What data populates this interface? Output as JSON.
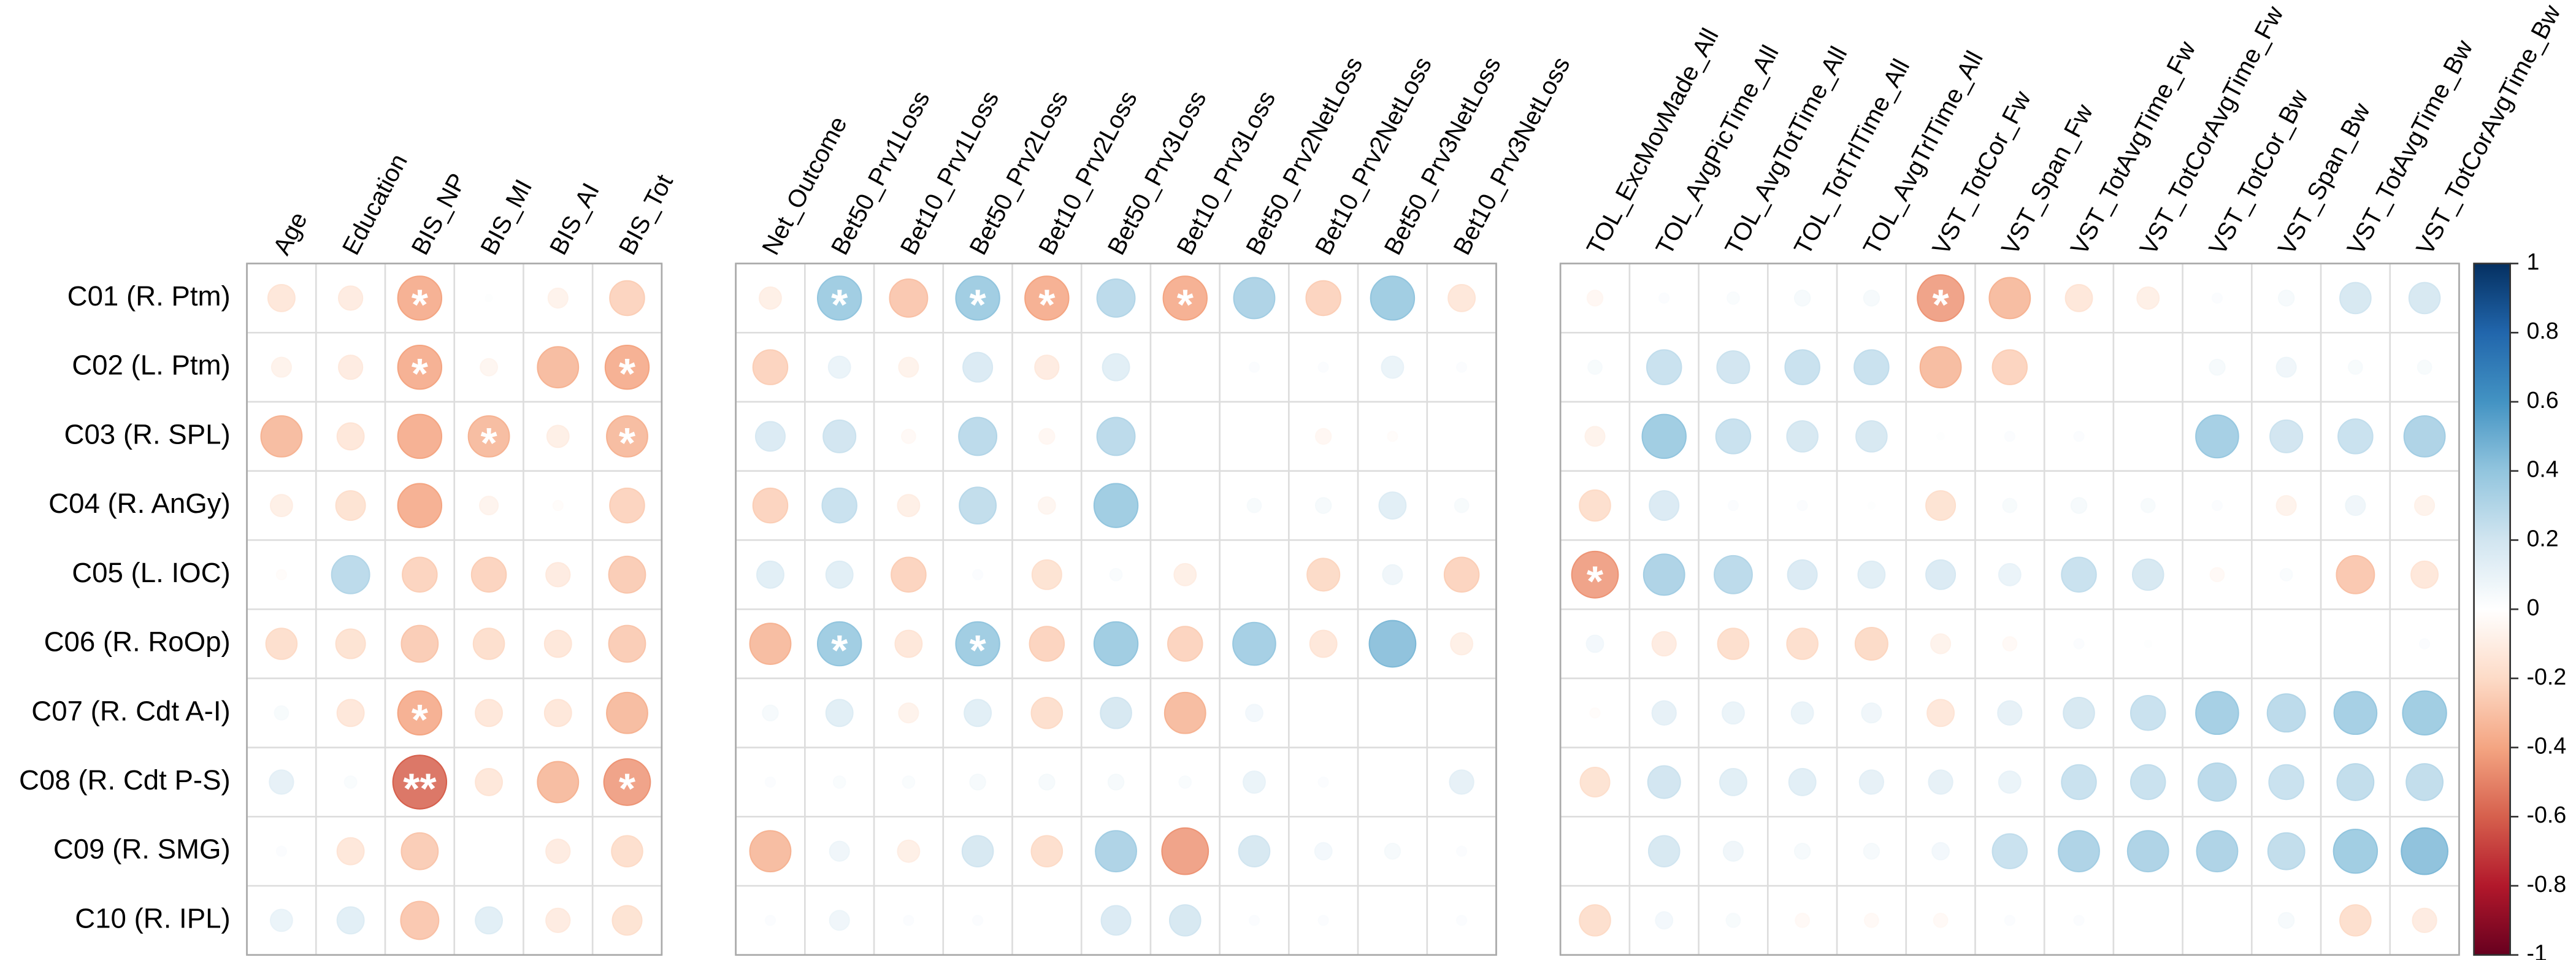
{
  "chart_data": {
    "type": "corrplot",
    "categories": [
      "C01 (R. Ptm)",
      "C02 (L. Ptm)",
      "C03 (R. SPL)",
      "C04 (R. AnGy)",
      "C05 (L. IOC)",
      "C06 (R. RoOp)",
      "C07 (R. Cdt A-I)",
      "C08 (R. Cdt P-S)",
      "C09 (R. SMG)",
      "C10 (R. IPL)"
    ],
    "colors": [
      "#67001F",
      "#B2182B",
      "#D6604D",
      "#F4A582",
      "#FDDBC7",
      "#FFFFFF",
      "#D1E5F0",
      "#92C5DE",
      "#4393C3",
      "#2166AC",
      "#053061"
    ],
    "clim": [
      -1,
      1
    ],
    "cticks": [
      1,
      0.8,
      0.6,
      0.4,
      0.2,
      0,
      -0.2,
      -0.4,
      -0.6,
      -0.8,
      -1
    ],
    "panels": [
      {
        "columns": [
          "Age",
          "Education",
          "BIS_NP",
          "BIS_MI",
          "BIS_AI",
          "BIS_Tot"
        ],
        "values": [
          [
            -0.15,
            -0.12,
            -0.4,
            0.01,
            -0.08,
            -0.25
          ],
          [
            -0.08,
            -0.12,
            -0.4,
            -0.06,
            -0.35,
            -0.4
          ],
          [
            -0.35,
            -0.15,
            -0.4,
            -0.35,
            -0.1,
            -0.35
          ],
          [
            -0.1,
            -0.18,
            -0.4,
            -0.07,
            -0.02,
            -0.25
          ],
          [
            -0.02,
            0.3,
            -0.25,
            -0.25,
            -0.12,
            -0.28
          ],
          [
            -0.2,
            -0.18,
            -0.28,
            -0.2,
            -0.15,
            -0.28
          ],
          [
            0.04,
            -0.15,
            -0.4,
            -0.15,
            -0.15,
            -0.35
          ],
          [
            0.12,
            0.03,
            -0.6,
            -0.15,
            -0.35,
            -0.45
          ],
          [
            0.02,
            -0.15,
            -0.28,
            0,
            -0.12,
            -0.2
          ],
          [
            0.1,
            0.15,
            -0.3,
            0.15,
            -0.12,
            -0.18
          ]
        ],
        "stars": [
          [
            null,
            null,
            "*",
            null,
            null,
            null
          ],
          [
            null,
            null,
            "*",
            null,
            null,
            "*"
          ],
          [
            null,
            null,
            null,
            "*",
            null,
            "*"
          ],
          [
            null,
            null,
            null,
            null,
            null,
            null
          ],
          [
            null,
            null,
            null,
            null,
            null,
            null
          ],
          [
            null,
            null,
            null,
            null,
            null,
            null
          ],
          [
            null,
            null,
            "*",
            null,
            null,
            null
          ],
          [
            null,
            null,
            "**",
            null,
            null,
            "*"
          ],
          [
            null,
            null,
            null,
            null,
            null,
            null
          ],
          [
            null,
            null,
            null,
            null,
            null,
            null
          ]
        ]
      },
      {
        "columns": [
          "Net_Outcome",
          "Bet50_Prv1Loss",
          "Bet10_Prv1Loss",
          "Bet50_Prv2Loss",
          "Bet10_Prv2Loss",
          "Bet50_Prv3Loss",
          "Bet10_Prv3Loss",
          "Bet50_Prv2NetLoss",
          "Bet10_Prv2NetLoss",
          "Bet50_Prv3NetLoss",
          "Bet10_Prv3NetLoss"
        ],
        "values": [
          [
            -0.1,
            0.4,
            -0.3,
            0.4,
            -0.4,
            0.3,
            -0.4,
            0.35,
            -0.25,
            0.4,
            -0.15
          ],
          [
            -0.25,
            0.1,
            -0.08,
            0.18,
            -0.12,
            0.15,
            0,
            0.02,
            0.02,
            0.1,
            0.02
          ],
          [
            0.18,
            0.22,
            -0.04,
            0.3,
            -0.05,
            0.3,
            0,
            0,
            -0.05,
            -0.02,
            0
          ],
          [
            -0.25,
            0.25,
            -0.1,
            0.28,
            -0.06,
            0.4,
            0,
            0.04,
            0.05,
            0.15,
            0.04
          ],
          [
            0.15,
            0.15,
            -0.25,
            0.02,
            -0.18,
            0.03,
            -0.1,
            0,
            -0.22,
            0.08,
            -0.25
          ],
          [
            -0.35,
            0.4,
            -0.15,
            0.4,
            -0.25,
            0.4,
            -0.25,
            0.38,
            -0.15,
            0.45,
            -0.1
          ],
          [
            0.05,
            0.15,
            -0.08,
            0.15,
            -0.2,
            0.2,
            -0.35,
            0.06,
            0,
            0,
            0
          ],
          [
            0.02,
            0.03,
            0.03,
            0.05,
            0.05,
            0.05,
            0.03,
            0.1,
            0.02,
            0,
            0.12
          ],
          [
            -0.35,
            0.08,
            -0.1,
            0.2,
            -0.2,
            0.35,
            -0.45,
            0.2,
            0.06,
            0.05,
            0.02
          ],
          [
            0.02,
            0.08,
            0.02,
            0.02,
            0,
            0.18,
            0.2,
            0.02,
            0.02,
            0,
            0.02
          ]
        ],
        "stars": [
          [
            null,
            "*",
            null,
            "*",
            "*",
            null,
            "*",
            null,
            null,
            null,
            null
          ],
          [
            null,
            null,
            null,
            null,
            null,
            null,
            null,
            null,
            null,
            null,
            null
          ],
          [
            null,
            null,
            null,
            null,
            null,
            null,
            null,
            null,
            null,
            null,
            null
          ],
          [
            null,
            null,
            null,
            null,
            null,
            null,
            null,
            null,
            null,
            null,
            null
          ],
          [
            null,
            null,
            null,
            null,
            null,
            null,
            null,
            null,
            null,
            null,
            null
          ],
          [
            null,
            "*",
            null,
            "*",
            null,
            null,
            null,
            null,
            null,
            null,
            null
          ],
          [
            null,
            null,
            null,
            null,
            null,
            null,
            null,
            null,
            null,
            null,
            null
          ],
          [
            null,
            null,
            null,
            null,
            null,
            null,
            null,
            null,
            null,
            null,
            null
          ],
          [
            null,
            null,
            null,
            null,
            null,
            null,
            null,
            null,
            null,
            null,
            null
          ],
          [
            null,
            null,
            null,
            null,
            null,
            null,
            null,
            null,
            null,
            null,
            null
          ]
        ]
      },
      {
        "columns": [
          "TOL_ExcMovMade_All",
          "TOL_AvgPicTime_All",
          "TOL_AvgTotTime_All",
          "TOL_TotTrlTime_All",
          "TOL_AvgTrlTime_All",
          "VST_TotCor_Fw",
          "VST_Span_Fw",
          "VST_TotAvgTime_Fw",
          "VST_TotCorAvgTime_Fw",
          "VST_TotCor_Bw",
          "VST_Span_Bw",
          "VST_TotAvgTime_Bw",
          "VST_TotCorAvgTime_Bw"
        ],
        "values": [
          [
            -0.05,
            0.02,
            0.03,
            0.05,
            0.05,
            -0.45,
            -0.35,
            -0.15,
            -0.1,
            0.02,
            0.05,
            0.2,
            0.2
          ],
          [
            0.04,
            0.25,
            0.22,
            0.25,
            0.25,
            -0.35,
            -0.25,
            0,
            0,
            0.05,
            0.08,
            0.04,
            0.04
          ],
          [
            -0.08,
            0.4,
            0.25,
            0.2,
            0.2,
            0.01,
            0.02,
            0.02,
            0,
            0.38,
            0.22,
            0.25,
            0.35
          ],
          [
            -0.2,
            0.18,
            0.02,
            0.02,
            0.01,
            -0.18,
            0.04,
            0.05,
            0.04,
            0.02,
            -0.08,
            0.08,
            -0.08
          ],
          [
            -0.45,
            0.35,
            0.3,
            0.18,
            0.15,
            0.18,
            0.1,
            0.25,
            0.2,
            -0.04,
            0.03,
            -0.3,
            -0.15
          ],
          [
            0.06,
            -0.12,
            -0.2,
            -0.2,
            -0.22,
            -0.08,
            -0.04,
            0.02,
            0.01,
            0,
            0,
            0,
            0.02
          ],
          [
            -0.02,
            0.12,
            0.1,
            0.1,
            0.08,
            -0.15,
            0.12,
            0.2,
            0.25,
            0.38,
            0.3,
            0.38,
            0.4
          ],
          [
            -0.18,
            0.22,
            0.15,
            0.15,
            0.12,
            0.12,
            0.1,
            0.25,
            0.25,
            0.3,
            0.25,
            0.28,
            0.28
          ],
          [
            0,
            0.2,
            0.08,
            0.05,
            0.05,
            0.06,
            0.25,
            0.35,
            0.35,
            0.35,
            0.28,
            0.4,
            0.45
          ],
          [
            -0.2,
            0.06,
            0.04,
            -0.04,
            -0.04,
            -0.04,
            0.02,
            0.02,
            0,
            0,
            0.05,
            -0.2,
            -0.12
          ]
        ],
        "stars": [
          [
            null,
            null,
            null,
            null,
            null,
            "*",
            null,
            null,
            null,
            null,
            null,
            null,
            null
          ],
          [
            null,
            null,
            null,
            null,
            null,
            null,
            null,
            null,
            null,
            null,
            null,
            null,
            null
          ],
          [
            null,
            null,
            null,
            null,
            null,
            null,
            null,
            null,
            null,
            null,
            null,
            null,
            null
          ],
          [
            null,
            null,
            null,
            null,
            null,
            null,
            null,
            null,
            null,
            null,
            null,
            null,
            null
          ],
          [
            "*",
            null,
            null,
            null,
            null,
            null,
            null,
            null,
            null,
            null,
            null,
            null,
            null
          ],
          [
            null,
            null,
            null,
            null,
            null,
            null,
            null,
            null,
            null,
            null,
            null,
            null,
            null
          ],
          [
            null,
            null,
            null,
            null,
            null,
            null,
            null,
            null,
            null,
            null,
            null,
            null,
            null
          ],
          [
            null,
            null,
            null,
            null,
            null,
            null,
            null,
            null,
            null,
            null,
            null,
            null,
            null
          ],
          [
            null,
            null,
            null,
            null,
            null,
            null,
            null,
            null,
            null,
            null,
            null,
            null,
            null
          ],
          [
            null,
            null,
            null,
            null,
            null,
            null,
            null,
            null,
            null,
            null,
            null,
            null,
            null
          ]
        ]
      }
    ]
  }
}
